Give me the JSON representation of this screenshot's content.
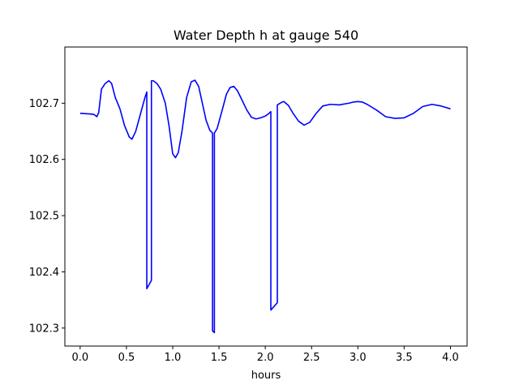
{
  "chart_data": {
    "type": "line",
    "title": "Water Depth h at gauge 540",
    "xlabel": "hours",
    "ylabel": "",
    "xlim": [
      -0.165,
      4.18
    ],
    "ylim": [
      102.268,
      102.8
    ],
    "xticks": [
      0.0,
      0.5,
      1.0,
      1.5,
      2.0,
      2.5,
      3.0,
      3.5,
      4.0
    ],
    "xtick_labels": [
      "0.0",
      "0.5",
      "1.0",
      "1.5",
      "2.0",
      "2.5",
      "3.0",
      "3.5",
      "4.0"
    ],
    "yticks": [
      102.3,
      102.4,
      102.5,
      102.6,
      102.7
    ],
    "ytick_labels": [
      "102.3",
      "102.4",
      "102.5",
      "102.6",
      "102.7"
    ],
    "grid": false,
    "color": "#0000ff",
    "series": [
      {
        "name": "",
        "x": [
          0.0,
          0.1,
          0.15,
          0.18,
          0.2,
          0.23,
          0.27,
          0.31,
          0.34,
          0.38,
          0.43,
          0.48,
          0.53,
          0.56,
          0.6,
          0.65,
          0.7,
          0.72,
          0.72,
          0.77,
          0.77,
          0.79,
          0.83,
          0.87,
          0.92,
          0.96,
          1.0,
          1.03,
          1.06,
          1.1,
          1.15,
          1.2,
          1.24,
          1.28,
          1.32,
          1.36,
          1.4,
          1.43,
          1.43,
          1.45,
          1.45,
          1.48,
          1.53,
          1.58,
          1.62,
          1.66,
          1.7,
          1.75,
          1.8,
          1.85,
          1.9,
          1.95,
          2.0,
          2.04,
          2.06,
          2.06,
          2.13,
          2.13,
          2.17,
          2.2,
          2.25,
          2.3,
          2.36,
          2.42,
          2.48,
          2.55,
          2.62,
          2.7,
          2.8,
          2.9,
          2.95,
          3.0,
          3.05,
          3.1,
          3.2,
          3.3,
          3.4,
          3.5,
          3.6,
          3.7,
          3.8,
          3.9,
          4.0
        ],
        "values": [
          102.682,
          102.681,
          102.68,
          102.676,
          102.683,
          102.725,
          102.735,
          102.74,
          102.735,
          102.71,
          102.69,
          102.66,
          102.64,
          102.636,
          102.65,
          102.68,
          102.71,
          102.72,
          102.37,
          102.385,
          102.74,
          102.74,
          102.735,
          102.725,
          102.7,
          102.66,
          102.61,
          102.603,
          102.612,
          102.65,
          102.71,
          102.738,
          102.741,
          102.73,
          102.7,
          102.67,
          102.652,
          102.647,
          102.295,
          102.292,
          102.647,
          102.655,
          102.685,
          102.716,
          102.728,
          102.73,
          102.722,
          102.705,
          102.688,
          102.675,
          102.672,
          102.674,
          102.677,
          102.682,
          102.685,
          102.332,
          102.345,
          102.697,
          102.701,
          102.703,
          102.696,
          102.682,
          102.668,
          102.661,
          102.666,
          102.682,
          102.695,
          102.698,
          102.697,
          102.7,
          102.702,
          102.703,
          102.702,
          102.698,
          102.688,
          102.676,
          102.673,
          102.674,
          102.682,
          102.694,
          102.698,
          102.695,
          102.69
        ]
      }
    ]
  }
}
